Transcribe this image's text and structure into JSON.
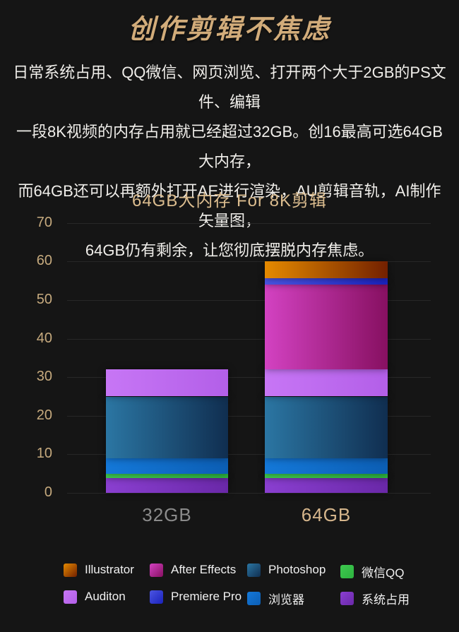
{
  "page_title": "创作剪辑不焦虑",
  "intro": {
    "lines": [
      "日常系统占用、QQ微信、网页浏览、打开两个大于2GB的PS文件、编辑",
      "一段8K视频的内存占用就已经超过32GB。创16最高可选64GB大内存，",
      "而64GB还可以再额外打开AE进行渲染，AU剪辑音轨，AI制作矢量图，",
      "64GB仍有剩余，让您彻底摆脱内存焦虑。"
    ]
  },
  "chart_data": {
    "type": "bar",
    "stacked": true,
    "title": "64GB大内存 For 8K剪辑",
    "categories": [
      "32GB",
      "64GB"
    ],
    "category_label_colors": [
      "#8b8b8b",
      "#d6b68c"
    ],
    "totals": [
      32,
      60
    ],
    "ylim": [
      0,
      70
    ],
    "yticks": [
      0,
      10,
      20,
      30,
      40,
      50,
      60,
      70
    ],
    "grid": true,
    "legend_position": "bottom",
    "series": [
      {
        "name": "系统占用",
        "values": [
          3.8,
          3.8
        ],
        "gradient": [
          "#8a3fd0",
          "#6a28a8"
        ]
      },
      {
        "name": "微信QQ",
        "values": [
          1.1,
          1.1
        ],
        "gradient": [
          "#3ec94f",
          "#2db23f"
        ]
      },
      {
        "name": "浏览器",
        "values": [
          4.1,
          4.1
        ],
        "gradient": [
          "#1478d8",
          "#0c5eb4"
        ]
      },
      {
        "name": "Photoshop",
        "values": [
          16,
          16
        ],
        "gradient": [
          "#2b76a3",
          "#102e50"
        ]
      },
      {
        "name": "Auditon",
        "values": [
          7,
          7
        ],
        "gradient": [
          "#c776f5",
          "#b35fe8"
        ]
      },
      {
        "name": "After Effects",
        "values": [
          0,
          22
        ],
        "gradient": [
          "#d342c2",
          "#871061"
        ]
      },
      {
        "name": "Premiere Pro",
        "values": [
          0,
          1.7
        ],
        "gradient": [
          "#4b55e2",
          "#1a22bb"
        ]
      },
      {
        "name": "Illustrator",
        "values": [
          0,
          4.3
        ],
        "gradient": [
          "#e58a00",
          "#722000"
        ]
      }
    ],
    "legend_order": [
      "Illustrator",
      "After Effects",
      "Photoshop",
      "微信QQ",
      "Auditon",
      "Premiere Pro",
      "浏览器",
      "系统占用"
    ]
  },
  "colors": {
    "background": "#151515",
    "title_gold": "#d2ac7a",
    "body_text": "#f0eeea",
    "chart_title_gold": "#dcbd8f",
    "tick_label_gold": "#c6aa7e",
    "gridline": "#272727",
    "label_32gb": "#8b8b8b",
    "label_64gb": "#d6b68c"
  }
}
